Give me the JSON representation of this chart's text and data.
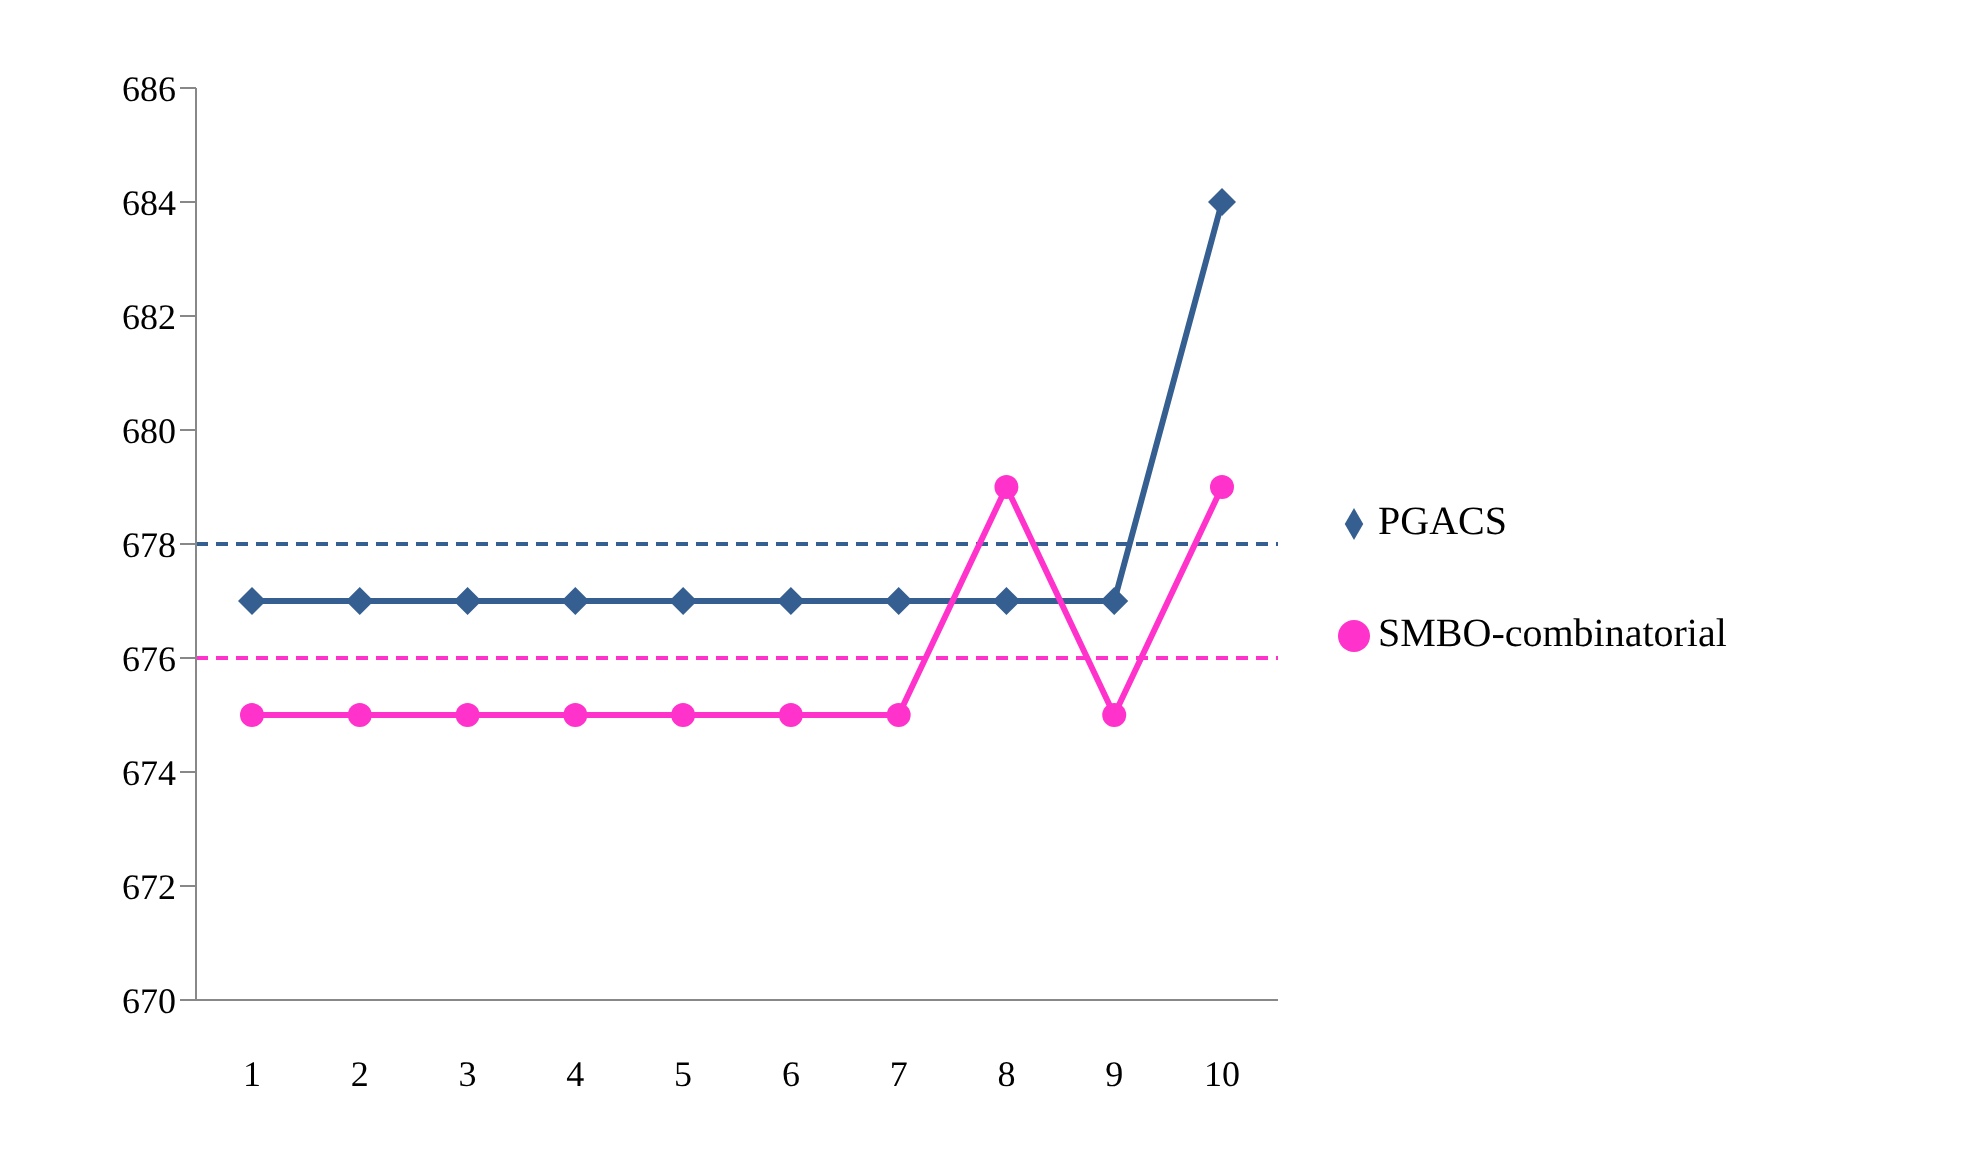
{
  "chart_data": {
    "type": "line",
    "categories": [
      "1",
      "2",
      "3",
      "4",
      "5",
      "6",
      "7",
      "8",
      "9",
      "10"
    ],
    "series": [
      {
        "name": "PGACS",
        "color": "#365f91",
        "marker": "diamond",
        "values": [
          677,
          677,
          677,
          677,
          677,
          677,
          677,
          677,
          677,
          684
        ]
      },
      {
        "name": "SMBO-combinatorial",
        "color": "#ff33cc",
        "marker": "circle",
        "values": [
          675,
          675,
          675,
          675,
          675,
          675,
          675,
          679,
          675,
          679
        ]
      }
    ],
    "ref_lines": [
      {
        "axis": "y",
        "value": 678,
        "color": "#365f91",
        "line_style": "dashed"
      },
      {
        "axis": "y",
        "value": 676,
        "color": "#ff33cc",
        "line_style": "dashed"
      }
    ],
    "ylim": [
      670,
      686
    ],
    "yticks": [
      670,
      672,
      674,
      676,
      678,
      680,
      682,
      684,
      686
    ],
    "grid": false,
    "legend": "right",
    "line_style": "solid"
  }
}
